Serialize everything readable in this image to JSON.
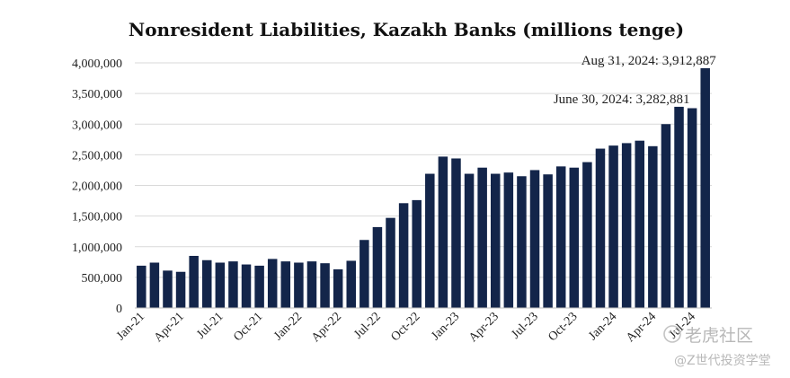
{
  "chart_data": {
    "type": "bar",
    "title": "Nonresident Liabilities, Kazakh Banks (millions tenge)",
    "xlabel": "",
    "ylabel": "",
    "ylim": [
      0,
      4000000
    ],
    "yticks": [
      0,
      500000,
      1000000,
      1500000,
      2000000,
      2500000,
      3000000,
      3500000,
      4000000
    ],
    "ytick_labels": [
      "0",
      "500,000",
      "1,000,000",
      "1,500,000",
      "2,000,000",
      "2,500,000",
      "3,000,000",
      "3,500,000",
      "4,000,000"
    ],
    "grid": true,
    "bar_color": "#13254a",
    "categories": [
      "Jan-21",
      "Feb-21",
      "Mar-21",
      "Apr-21",
      "May-21",
      "Jun-21",
      "Jul-21",
      "Aug-21",
      "Sep-21",
      "Oct-21",
      "Nov-21",
      "Dec-21",
      "Jan-22",
      "Feb-22",
      "Mar-22",
      "Apr-22",
      "May-22",
      "Jun-22",
      "Jul-22",
      "Aug-22",
      "Sep-22",
      "Oct-22",
      "Nov-22",
      "Dec-22",
      "Jan-23",
      "Feb-23",
      "Mar-23",
      "Apr-23",
      "May-23",
      "Jun-23",
      "Jul-23",
      "Aug-23",
      "Sep-23",
      "Oct-23",
      "Nov-23",
      "Dec-23",
      "Jan-24",
      "Feb-24",
      "Mar-24",
      "Apr-24",
      "May-24",
      "Jun-24",
      "Jul-24",
      "Aug-24"
    ],
    "x_tick_labels": [
      "Jan-21",
      "Apr-21",
      "Jul-21",
      "Oct-21",
      "Jan-22",
      "Apr-22",
      "Jul-22",
      "Oct-22",
      "Jan-23",
      "Apr-23",
      "Jul-23",
      "Oct-23",
      "Jan-24",
      "Apr-24",
      "Jul-24"
    ],
    "values": [
      690000,
      740000,
      610000,
      590000,
      850000,
      780000,
      740000,
      760000,
      710000,
      690000,
      800000,
      760000,
      740000,
      760000,
      730000,
      630000,
      770000,
      1110000,
      1320000,
      1470000,
      1710000,
      1760000,
      2190000,
      2470000,
      2440000,
      2190000,
      2290000,
      2190000,
      2210000,
      2150000,
      2250000,
      2180000,
      2310000,
      2290000,
      2380000,
      2600000,
      2650000,
      2690000,
      2730000,
      2640000,
      3000000,
      3282881,
      3260000,
      3912887
    ],
    "annotations": [
      {
        "text": "Aug 31, 2024: 3,912,887",
        "category": "Aug-24",
        "value": 3912887
      },
      {
        "text": "June 30, 2024: 3,282,881",
        "category": "Jun-24",
        "value": 3282881
      }
    ]
  },
  "watermark": {
    "line1": "老虎社区",
    "line2": "@Z世代投资学堂"
  }
}
